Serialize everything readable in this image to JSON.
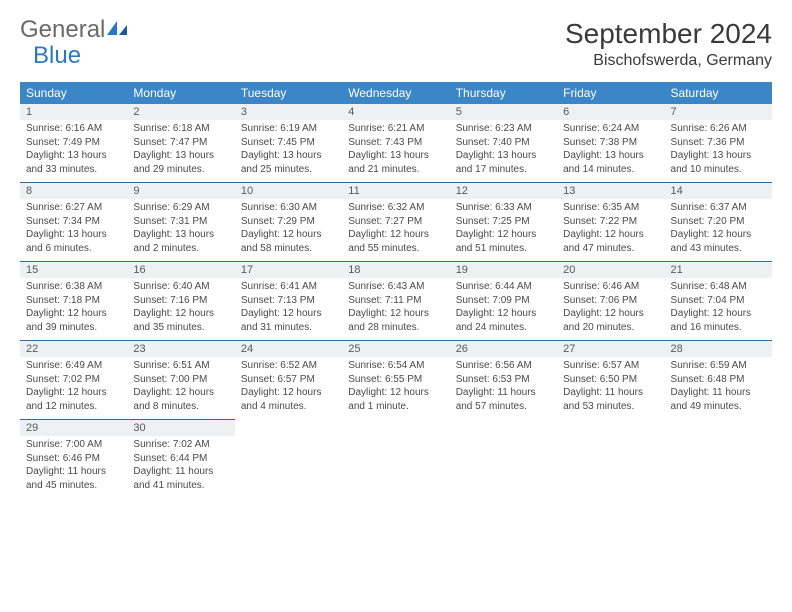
{
  "brand": {
    "part1": "General",
    "part2": "Blue"
  },
  "title": "September 2024",
  "location": "Bischofswerda, Germany",
  "colors": {
    "header_bg": "#3b86c6",
    "header_text": "#ffffff",
    "daynum_bg": "#eef0f1",
    "border": "#2b6aa3",
    "logo_gray": "#6a6a6a",
    "logo_blue": "#2b78c2",
    "text": "#4a4a4a",
    "background": "#ffffff"
  },
  "calendar": {
    "type": "table",
    "days_of_week": [
      "Sunday",
      "Monday",
      "Tuesday",
      "Wednesday",
      "Thursday",
      "Friday",
      "Saturday"
    ],
    "days": [
      {
        "n": "1",
        "sunrise": "Sunrise: 6:16 AM",
        "sunset": "Sunset: 7:49 PM",
        "daylight": "Daylight: 13 hours and 33 minutes."
      },
      {
        "n": "2",
        "sunrise": "Sunrise: 6:18 AM",
        "sunset": "Sunset: 7:47 PM",
        "daylight": "Daylight: 13 hours and 29 minutes."
      },
      {
        "n": "3",
        "sunrise": "Sunrise: 6:19 AM",
        "sunset": "Sunset: 7:45 PM",
        "daylight": "Daylight: 13 hours and 25 minutes."
      },
      {
        "n": "4",
        "sunrise": "Sunrise: 6:21 AM",
        "sunset": "Sunset: 7:43 PM",
        "daylight": "Daylight: 13 hours and 21 minutes."
      },
      {
        "n": "5",
        "sunrise": "Sunrise: 6:23 AM",
        "sunset": "Sunset: 7:40 PM",
        "daylight": "Daylight: 13 hours and 17 minutes."
      },
      {
        "n": "6",
        "sunrise": "Sunrise: 6:24 AM",
        "sunset": "Sunset: 7:38 PM",
        "daylight": "Daylight: 13 hours and 14 minutes."
      },
      {
        "n": "7",
        "sunrise": "Sunrise: 6:26 AM",
        "sunset": "Sunset: 7:36 PM",
        "daylight": "Daylight: 13 hours and 10 minutes."
      },
      {
        "n": "8",
        "sunrise": "Sunrise: 6:27 AM",
        "sunset": "Sunset: 7:34 PM",
        "daylight": "Daylight: 13 hours and 6 minutes."
      },
      {
        "n": "9",
        "sunrise": "Sunrise: 6:29 AM",
        "sunset": "Sunset: 7:31 PM",
        "daylight": "Daylight: 13 hours and 2 minutes."
      },
      {
        "n": "10",
        "sunrise": "Sunrise: 6:30 AM",
        "sunset": "Sunset: 7:29 PM",
        "daylight": "Daylight: 12 hours and 58 minutes."
      },
      {
        "n": "11",
        "sunrise": "Sunrise: 6:32 AM",
        "sunset": "Sunset: 7:27 PM",
        "daylight": "Daylight: 12 hours and 55 minutes."
      },
      {
        "n": "12",
        "sunrise": "Sunrise: 6:33 AM",
        "sunset": "Sunset: 7:25 PM",
        "daylight": "Daylight: 12 hours and 51 minutes."
      },
      {
        "n": "13",
        "sunrise": "Sunrise: 6:35 AM",
        "sunset": "Sunset: 7:22 PM",
        "daylight": "Daylight: 12 hours and 47 minutes."
      },
      {
        "n": "14",
        "sunrise": "Sunrise: 6:37 AM",
        "sunset": "Sunset: 7:20 PM",
        "daylight": "Daylight: 12 hours and 43 minutes."
      },
      {
        "n": "15",
        "sunrise": "Sunrise: 6:38 AM",
        "sunset": "Sunset: 7:18 PM",
        "daylight": "Daylight: 12 hours and 39 minutes."
      },
      {
        "n": "16",
        "sunrise": "Sunrise: 6:40 AM",
        "sunset": "Sunset: 7:16 PM",
        "daylight": "Daylight: 12 hours and 35 minutes."
      },
      {
        "n": "17",
        "sunrise": "Sunrise: 6:41 AM",
        "sunset": "Sunset: 7:13 PM",
        "daylight": "Daylight: 12 hours and 31 minutes."
      },
      {
        "n": "18",
        "sunrise": "Sunrise: 6:43 AM",
        "sunset": "Sunset: 7:11 PM",
        "daylight": "Daylight: 12 hours and 28 minutes."
      },
      {
        "n": "19",
        "sunrise": "Sunrise: 6:44 AM",
        "sunset": "Sunset: 7:09 PM",
        "daylight": "Daylight: 12 hours and 24 minutes."
      },
      {
        "n": "20",
        "sunrise": "Sunrise: 6:46 AM",
        "sunset": "Sunset: 7:06 PM",
        "daylight": "Daylight: 12 hours and 20 minutes."
      },
      {
        "n": "21",
        "sunrise": "Sunrise: 6:48 AM",
        "sunset": "Sunset: 7:04 PM",
        "daylight": "Daylight: 12 hours and 16 minutes."
      },
      {
        "n": "22",
        "sunrise": "Sunrise: 6:49 AM",
        "sunset": "Sunset: 7:02 PM",
        "daylight": "Daylight: 12 hours and 12 minutes."
      },
      {
        "n": "23",
        "sunrise": "Sunrise: 6:51 AM",
        "sunset": "Sunset: 7:00 PM",
        "daylight": "Daylight: 12 hours and 8 minutes."
      },
      {
        "n": "24",
        "sunrise": "Sunrise: 6:52 AM",
        "sunset": "Sunset: 6:57 PM",
        "daylight": "Daylight: 12 hours and 4 minutes."
      },
      {
        "n": "25",
        "sunrise": "Sunrise: 6:54 AM",
        "sunset": "Sunset: 6:55 PM",
        "daylight": "Daylight: 12 hours and 1 minute."
      },
      {
        "n": "26",
        "sunrise": "Sunrise: 6:56 AM",
        "sunset": "Sunset: 6:53 PM",
        "daylight": "Daylight: 11 hours and 57 minutes."
      },
      {
        "n": "27",
        "sunrise": "Sunrise: 6:57 AM",
        "sunset": "Sunset: 6:50 PM",
        "daylight": "Daylight: 11 hours and 53 minutes."
      },
      {
        "n": "28",
        "sunrise": "Sunrise: 6:59 AM",
        "sunset": "Sunset: 6:48 PM",
        "daylight": "Daylight: 11 hours and 49 minutes."
      },
      {
        "n": "29",
        "sunrise": "Sunrise: 7:00 AM",
        "sunset": "Sunset: 6:46 PM",
        "daylight": "Daylight: 11 hours and 45 minutes."
      },
      {
        "n": "30",
        "sunrise": "Sunrise: 7:02 AM",
        "sunset": "Sunset: 6:44 PM",
        "daylight": "Daylight: 11 hours and 41 minutes."
      }
    ]
  }
}
